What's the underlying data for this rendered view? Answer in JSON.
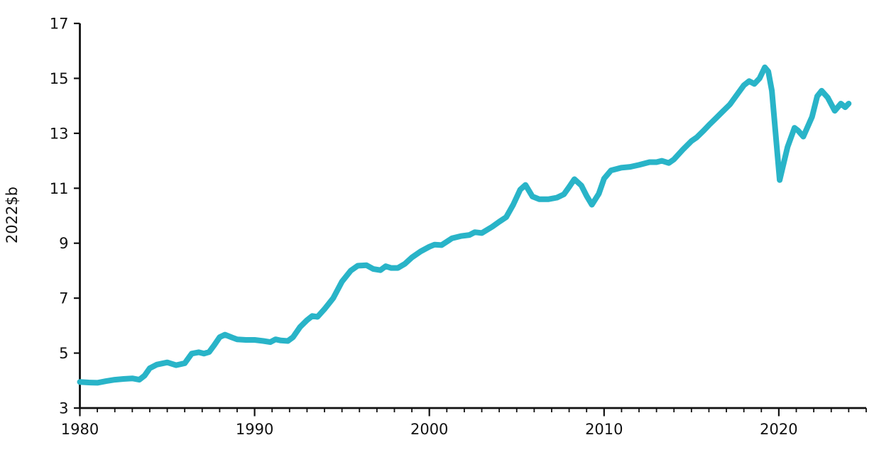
{
  "chart_data": {
    "type": "line",
    "title": "",
    "xlabel": "",
    "ylabel": "2022$b",
    "x_axis_range": [
      1980,
      2025
    ],
    "ylim": [
      3,
      17
    ],
    "y_ticks": [
      3,
      5,
      7,
      9,
      11,
      13,
      15,
      17
    ],
    "x_ticks_major": [
      1980,
      1990,
      2000,
      2010,
      2020
    ],
    "x_tick_labels": [
      "1980",
      "1990",
      "2000",
      "2010",
      "2020"
    ],
    "x_minor_tick_step_years": 1,
    "grid": false,
    "legend_position": "none",
    "series": [
      {
        "name": "real-value-series",
        "color": "#29b4c8",
        "points": [
          [
            1980.0,
            3.95
          ],
          [
            1980.5,
            3.93
          ],
          [
            1981.0,
            3.92
          ],
          [
            1981.5,
            3.98
          ],
          [
            1982.0,
            4.03
          ],
          [
            1982.5,
            4.06
          ],
          [
            1983.0,
            4.08
          ],
          [
            1983.4,
            4.03
          ],
          [
            1983.7,
            4.18
          ],
          [
            1984.0,
            4.45
          ],
          [
            1984.4,
            4.58
          ],
          [
            1985.0,
            4.66
          ],
          [
            1985.5,
            4.56
          ],
          [
            1986.0,
            4.63
          ],
          [
            1986.4,
            4.98
          ],
          [
            1986.8,
            5.03
          ],
          [
            1987.1,
            4.98
          ],
          [
            1987.4,
            5.04
          ],
          [
            1987.7,
            5.3
          ],
          [
            1988.0,
            5.58
          ],
          [
            1988.3,
            5.67
          ],
          [
            1988.7,
            5.57
          ],
          [
            1989.0,
            5.5
          ],
          [
            1989.5,
            5.48
          ],
          [
            1990.0,
            5.48
          ],
          [
            1990.5,
            5.44
          ],
          [
            1990.9,
            5.4
          ],
          [
            1991.2,
            5.5
          ],
          [
            1991.5,
            5.46
          ],
          [
            1991.9,
            5.44
          ],
          [
            1992.2,
            5.58
          ],
          [
            1992.6,
            5.95
          ],
          [
            1993.0,
            6.2
          ],
          [
            1993.3,
            6.35
          ],
          [
            1993.6,
            6.32
          ],
          [
            1994.0,
            6.6
          ],
          [
            1994.5,
            7.0
          ],
          [
            1995.0,
            7.6
          ],
          [
            1995.5,
            8.0
          ],
          [
            1995.9,
            8.18
          ],
          [
            1996.4,
            8.2
          ],
          [
            1996.8,
            8.06
          ],
          [
            1997.2,
            8.02
          ],
          [
            1997.5,
            8.16
          ],
          [
            1997.8,
            8.1
          ],
          [
            1998.2,
            8.1
          ],
          [
            1998.6,
            8.25
          ],
          [
            1999.0,
            8.48
          ],
          [
            1999.5,
            8.7
          ],
          [
            2000.0,
            8.87
          ],
          [
            2000.3,
            8.95
          ],
          [
            2000.7,
            8.93
          ],
          [
            2001.3,
            9.18
          ],
          [
            2001.8,
            9.26
          ],
          [
            2002.3,
            9.3
          ],
          [
            2002.6,
            9.4
          ],
          [
            2003.0,
            9.37
          ],
          [
            2003.6,
            9.6
          ],
          [
            2004.0,
            9.78
          ],
          [
            2004.4,
            9.95
          ],
          [
            2004.8,
            10.4
          ],
          [
            2005.2,
            10.95
          ],
          [
            2005.5,
            11.12
          ],
          [
            2005.9,
            10.7
          ],
          [
            2006.3,
            10.6
          ],
          [
            2006.8,
            10.6
          ],
          [
            2007.3,
            10.66
          ],
          [
            2007.7,
            10.78
          ],
          [
            2008.0,
            11.05
          ],
          [
            2008.3,
            11.33
          ],
          [
            2008.7,
            11.1
          ],
          [
            2009.0,
            10.72
          ],
          [
            2009.3,
            10.4
          ],
          [
            2009.7,
            10.8
          ],
          [
            2010.0,
            11.35
          ],
          [
            2010.4,
            11.65
          ],
          [
            2011.0,
            11.75
          ],
          [
            2011.5,
            11.78
          ],
          [
            2012.0,
            11.85
          ],
          [
            2012.6,
            11.95
          ],
          [
            2013.0,
            11.95
          ],
          [
            2013.3,
            12.0
          ],
          [
            2013.7,
            11.92
          ],
          [
            2014.0,
            12.05
          ],
          [
            2014.5,
            12.4
          ],
          [
            2015.0,
            12.72
          ],
          [
            2015.3,
            12.85
          ],
          [
            2015.7,
            13.1
          ],
          [
            2016.0,
            13.3
          ],
          [
            2016.4,
            13.55
          ],
          [
            2016.8,
            13.8
          ],
          [
            2017.2,
            14.05
          ],
          [
            2017.6,
            14.4
          ],
          [
            2018.0,
            14.75
          ],
          [
            2018.3,
            14.9
          ],
          [
            2018.6,
            14.8
          ],
          [
            2018.9,
            15.0
          ],
          [
            2019.2,
            15.4
          ],
          [
            2019.4,
            15.25
          ],
          [
            2019.6,
            14.55
          ],
          [
            2020.05,
            11.3
          ],
          [
            2020.5,
            12.5
          ],
          [
            2020.9,
            13.2
          ],
          [
            2021.1,
            13.1
          ],
          [
            2021.4,
            12.88
          ],
          [
            2021.9,
            13.6
          ],
          [
            2022.2,
            14.35
          ],
          [
            2022.45,
            14.55
          ],
          [
            2022.8,
            14.3
          ],
          [
            2023.2,
            13.82
          ],
          [
            2023.55,
            14.08
          ],
          [
            2023.8,
            13.95
          ],
          [
            2024.0,
            14.08
          ]
        ]
      }
    ]
  },
  "style": {
    "line_color": "#29b4c8",
    "axis_color": "#111111",
    "background": "#ffffff"
  }
}
